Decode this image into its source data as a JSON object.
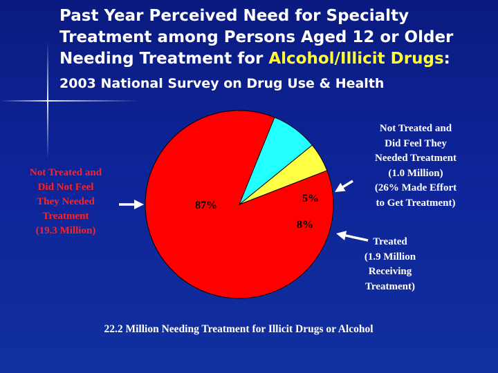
{
  "title": {
    "line1": "Past Year Perceived Need for Specialty",
    "line2": "Treatment among Persons Aged 12 or Older",
    "line3_prefix": "Needing Treatment for ",
    "line3_highlight": "Alcohol/Illicit Drugs",
    "line3_suffix": ":",
    "subtitle": "2003 National Survey on Drug Use & Health"
  },
  "labels": {
    "left": [
      "Not Treated and",
      "Did Not Feel",
      "They Needed",
      "Treatment",
      "(19.3 Million)"
    ],
    "right_top": [
      "Not Treated and",
      "Did Feel They",
      "Needed Treatment",
      "(1.0 Million)",
      "(26% Made Effort",
      "to Get Treatment)"
    ],
    "right_bottom": [
      "Treated",
      "(1.9 Million",
      "Receiving",
      "Treatment)"
    ]
  },
  "footnote": "22.2 Million Needing Treatment for Illicit Drugs or Alcohol",
  "chart_data": {
    "type": "pie",
    "slices": [
      {
        "label": "87%",
        "value": 87,
        "color": "#ff0000"
      },
      {
        "label": "5%",
        "value": 5,
        "color": "#ffff44"
      },
      {
        "label": "8%",
        "value": 8,
        "color": "#22ffff"
      }
    ]
  },
  "colors": {
    "background": "#0d2498",
    "highlight": "#ffff33",
    "left_label": "#ff2222",
    "arrow": "#ffffff"
  }
}
